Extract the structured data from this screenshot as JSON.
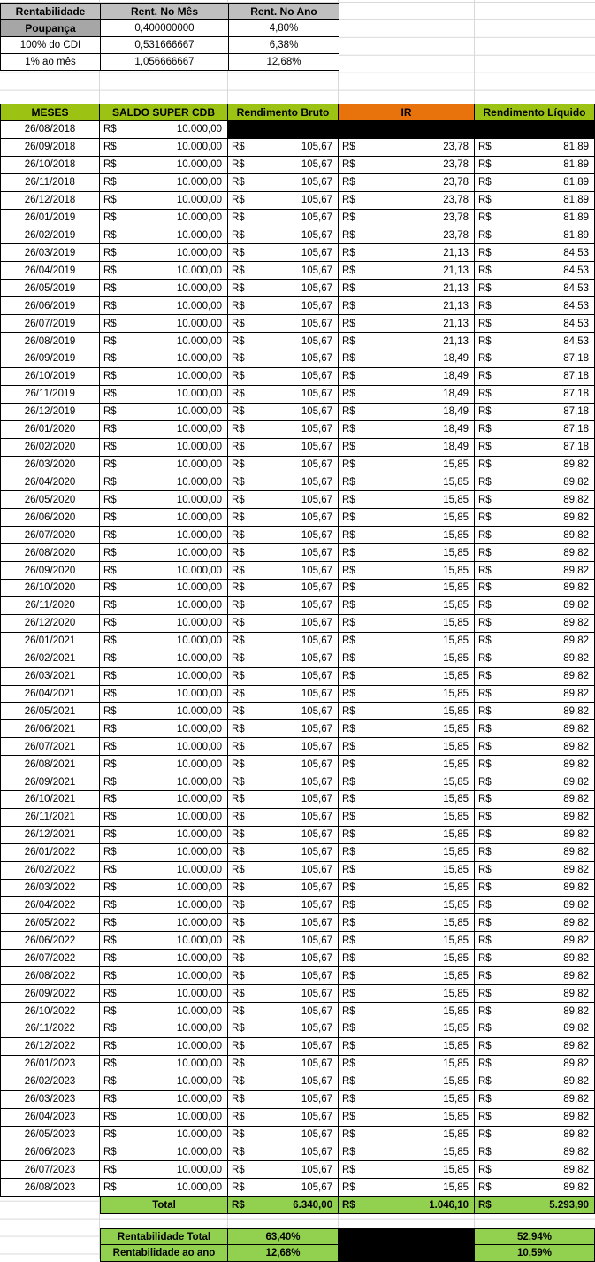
{
  "top_table": {
    "headers": [
      "Rentabilidade",
      "Rent. No Mês",
      "Rent. No Ano"
    ],
    "rows": [
      {
        "label": "Poupança",
        "month": "0,400000000",
        "year": "4,80%"
      },
      {
        "label": "100% do CDI",
        "month": "0,531666667",
        "year": "6,38%"
      },
      {
        "label": "1% ao mês",
        "month": "1,056666667",
        "year": "12,68%"
      }
    ]
  },
  "main_table": {
    "headers": [
      "MESES",
      "SALDO SUPER CDB",
      "Rendimento Bruto",
      "IR",
      "Rendimento Líquido"
    ],
    "currency_symbol": "R$",
    "rows": [
      [
        "26/08/2018",
        "10.000,00",
        null,
        null,
        null
      ],
      [
        "26/09/2018",
        "10.000,00",
        "105,67",
        "23,78",
        "81,89"
      ],
      [
        "26/10/2018",
        "10.000,00",
        "105,67",
        "23,78",
        "81,89"
      ],
      [
        "26/11/2018",
        "10.000,00",
        "105,67",
        "23,78",
        "81,89"
      ],
      [
        "26/12/2018",
        "10.000,00",
        "105,67",
        "23,78",
        "81,89"
      ],
      [
        "26/01/2019",
        "10.000,00",
        "105,67",
        "23,78",
        "81,89"
      ],
      [
        "26/02/2019",
        "10.000,00",
        "105,67",
        "23,78",
        "81,89"
      ],
      [
        "26/03/2019",
        "10.000,00",
        "105,67",
        "21,13",
        "84,53"
      ],
      [
        "26/04/2019",
        "10.000,00",
        "105,67",
        "21,13",
        "84,53"
      ],
      [
        "26/05/2019",
        "10.000,00",
        "105,67",
        "21,13",
        "84,53"
      ],
      [
        "26/06/2019",
        "10.000,00",
        "105,67",
        "21,13",
        "84,53"
      ],
      [
        "26/07/2019",
        "10.000,00",
        "105,67",
        "21,13",
        "84,53"
      ],
      [
        "26/08/2019",
        "10.000,00",
        "105,67",
        "21,13",
        "84,53"
      ],
      [
        "26/09/2019",
        "10.000,00",
        "105,67",
        "18,49",
        "87,18"
      ],
      [
        "26/10/2019",
        "10.000,00",
        "105,67",
        "18,49",
        "87,18"
      ],
      [
        "26/11/2019",
        "10.000,00",
        "105,67",
        "18,49",
        "87,18"
      ],
      [
        "26/12/2019",
        "10.000,00",
        "105,67",
        "18,49",
        "87,18"
      ],
      [
        "26/01/2020",
        "10.000,00",
        "105,67",
        "18,49",
        "87,18"
      ],
      [
        "26/02/2020",
        "10.000,00",
        "105,67",
        "18,49",
        "87,18"
      ],
      [
        "26/03/2020",
        "10.000,00",
        "105,67",
        "15,85",
        "89,82"
      ],
      [
        "26/04/2020",
        "10.000,00",
        "105,67",
        "15,85",
        "89,82"
      ],
      [
        "26/05/2020",
        "10.000,00",
        "105,67",
        "15,85",
        "89,82"
      ],
      [
        "26/06/2020",
        "10.000,00",
        "105,67",
        "15,85",
        "89,82"
      ],
      [
        "26/07/2020",
        "10.000,00",
        "105,67",
        "15,85",
        "89,82"
      ],
      [
        "26/08/2020",
        "10.000,00",
        "105,67",
        "15,85",
        "89,82"
      ],
      [
        "26/09/2020",
        "10.000,00",
        "105,67",
        "15,85",
        "89,82"
      ],
      [
        "26/10/2020",
        "10.000,00",
        "105,67",
        "15,85",
        "89,82"
      ],
      [
        "26/11/2020",
        "10.000,00",
        "105,67",
        "15,85",
        "89,82"
      ],
      [
        "26/12/2020",
        "10.000,00",
        "105,67",
        "15,85",
        "89,82"
      ],
      [
        "26/01/2021",
        "10.000,00",
        "105,67",
        "15,85",
        "89,82"
      ],
      [
        "26/02/2021",
        "10.000,00",
        "105,67",
        "15,85",
        "89,82"
      ],
      [
        "26/03/2021",
        "10.000,00",
        "105,67",
        "15,85",
        "89,82"
      ],
      [
        "26/04/2021",
        "10.000,00",
        "105,67",
        "15,85",
        "89,82"
      ],
      [
        "26/05/2021",
        "10.000,00",
        "105,67",
        "15,85",
        "89,82"
      ],
      [
        "26/06/2021",
        "10.000,00",
        "105,67",
        "15,85",
        "89,82"
      ],
      [
        "26/07/2021",
        "10.000,00",
        "105,67",
        "15,85",
        "89,82"
      ],
      [
        "26/08/2021",
        "10.000,00",
        "105,67",
        "15,85",
        "89,82"
      ],
      [
        "26/09/2021",
        "10.000,00",
        "105,67",
        "15,85",
        "89,82"
      ],
      [
        "26/10/2021",
        "10.000,00",
        "105,67",
        "15,85",
        "89,82"
      ],
      [
        "26/11/2021",
        "10.000,00",
        "105,67",
        "15,85",
        "89,82"
      ],
      [
        "26/12/2021",
        "10.000,00",
        "105,67",
        "15,85",
        "89,82"
      ],
      [
        "26/01/2022",
        "10.000,00",
        "105,67",
        "15,85",
        "89,82"
      ],
      [
        "26/02/2022",
        "10.000,00",
        "105,67",
        "15,85",
        "89,82"
      ],
      [
        "26/03/2022",
        "10.000,00",
        "105,67",
        "15,85",
        "89,82"
      ],
      [
        "26/04/2022",
        "10.000,00",
        "105,67",
        "15,85",
        "89,82"
      ],
      [
        "26/05/2022",
        "10.000,00",
        "105,67",
        "15,85",
        "89,82"
      ],
      [
        "26/06/2022",
        "10.000,00",
        "105,67",
        "15,85",
        "89,82"
      ],
      [
        "26/07/2022",
        "10.000,00",
        "105,67",
        "15,85",
        "89,82"
      ],
      [
        "26/08/2022",
        "10.000,00",
        "105,67",
        "15,85",
        "89,82"
      ],
      [
        "26/09/2022",
        "10.000,00",
        "105,67",
        "15,85",
        "89,82"
      ],
      [
        "26/10/2022",
        "10.000,00",
        "105,67",
        "15,85",
        "89,82"
      ],
      [
        "26/11/2022",
        "10.000,00",
        "105,67",
        "15,85",
        "89,82"
      ],
      [
        "26/12/2022",
        "10.000,00",
        "105,67",
        "15,85",
        "89,82"
      ],
      [
        "26/01/2023",
        "10.000,00",
        "105,67",
        "15,85",
        "89,82"
      ],
      [
        "26/02/2023",
        "10.000,00",
        "105,67",
        "15,85",
        "89,82"
      ],
      [
        "26/03/2023",
        "10.000,00",
        "105,67",
        "15,85",
        "89,82"
      ],
      [
        "26/04/2023",
        "10.000,00",
        "105,67",
        "15,85",
        "89,82"
      ],
      [
        "26/05/2023",
        "10.000,00",
        "105,67",
        "15,85",
        "89,82"
      ],
      [
        "26/06/2023",
        "10.000,00",
        "105,67",
        "15,85",
        "89,82"
      ],
      [
        "26/07/2023",
        "10.000,00",
        "105,67",
        "15,85",
        "89,82"
      ],
      [
        "26/08/2023",
        "10.000,00",
        "105,67",
        "15,85",
        "89,82"
      ]
    ],
    "total": {
      "label": "Total",
      "bruto": "6.340,00",
      "ir": "1.046,10",
      "liquido": "5.293,90"
    }
  },
  "summary": {
    "rows": [
      {
        "label": "Rentabilidade Total",
        "bruto": "63,40%",
        "liquido": "52,94%"
      },
      {
        "label": "Rentabilidade ao ano",
        "bruto": "12,68%",
        "liquido": "10,59%"
      }
    ]
  },
  "colors": {
    "header_green": "#9CC313",
    "header_orange": "#E8730C",
    "light_green": "#92D050",
    "header_gray": "#BFBFBF",
    "dark_gray": "#A6A6A6",
    "black_cell": "#000000",
    "gridline": "#D9D9D9"
  }
}
